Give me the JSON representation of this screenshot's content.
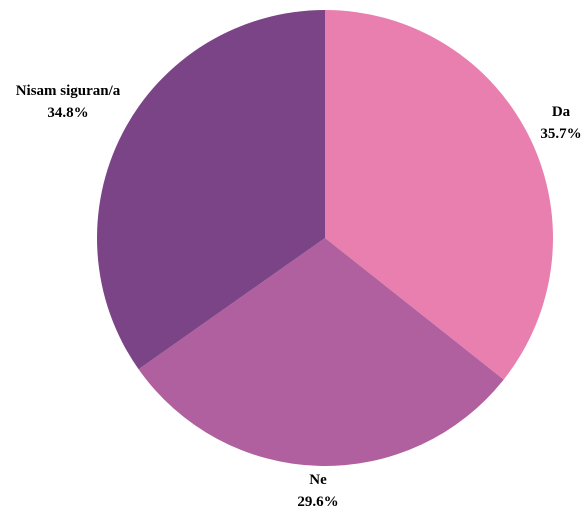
{
  "chart_data": {
    "type": "pie",
    "slices": [
      {
        "label": "Da",
        "value": 35.7,
        "value_label": "35.7%",
        "color": "#E97FAF"
      },
      {
        "label": "Ne",
        "value": 29.6,
        "value_label": "29.6%",
        "color": "#B0609E"
      },
      {
        "label": "Nisam siguran/a",
        "value": 34.8,
        "value_label": "34.8%",
        "color": "#7B4486"
      }
    ],
    "start_angle": "12 o'clock",
    "direction": "clockwise"
  }
}
